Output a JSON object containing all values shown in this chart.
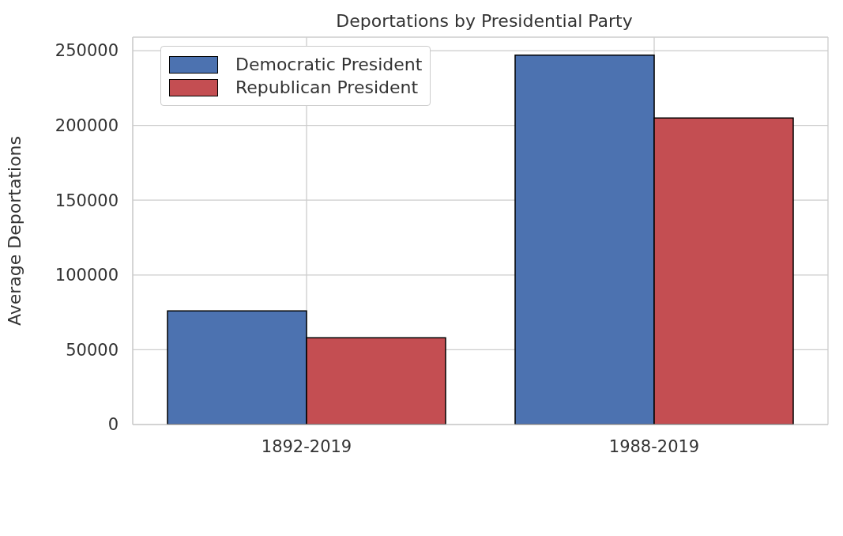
{
  "chart_data": {
    "type": "bar",
    "title": "Deportations by Presidential Party",
    "ylabel": "Average Deportations",
    "categories": [
      "1892-2019",
      "1988-2019"
    ],
    "series": [
      {
        "name": "Democratic President",
        "color": "#4c72b0",
        "values": [
          76000,
          247000
        ]
      },
      {
        "name": "Republican President",
        "color": "#c44e52",
        "values": [
          58000,
          205000
        ]
      }
    ],
    "ylim": [
      0,
      259000
    ],
    "yticks": [
      0,
      50000,
      100000,
      150000,
      200000,
      250000
    ],
    "grid": true,
    "legend": "top left"
  }
}
